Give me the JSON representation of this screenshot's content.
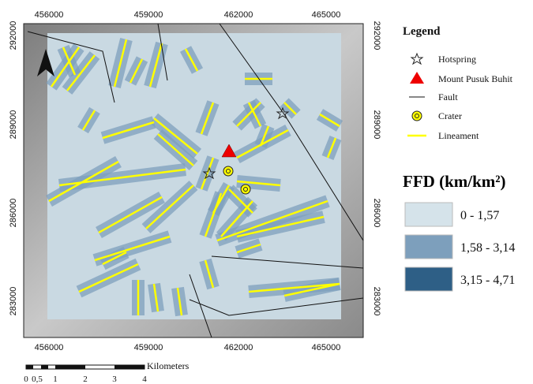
{
  "map": {
    "x_ticks": [
      "456000",
      "459000",
      "462000",
      "465000"
    ],
    "y_ticks": [
      "292000",
      "289000",
      "286000",
      "283000"
    ],
    "scale_bar": {
      "unit": "Kilometers",
      "labels": [
        "0",
        "0,5",
        "1",
        "2",
        "3",
        "4"
      ]
    }
  },
  "legend": {
    "title": "Legend",
    "items": [
      "Hotspring",
      "Mount Pusuk Buhit",
      "Fault",
      "Crater",
      "Lineament"
    ],
    "ffd_title": "FFD (km/km²)",
    "classes": [
      {
        "label": "0 - 1,57",
        "color": "#d5e3ea"
      },
      {
        "label": "1,58 - 3,14",
        "color": "#7d9fbc"
      },
      {
        "label": "3,15 - 4,71",
        "color": "#2e5f86"
      }
    ]
  }
}
